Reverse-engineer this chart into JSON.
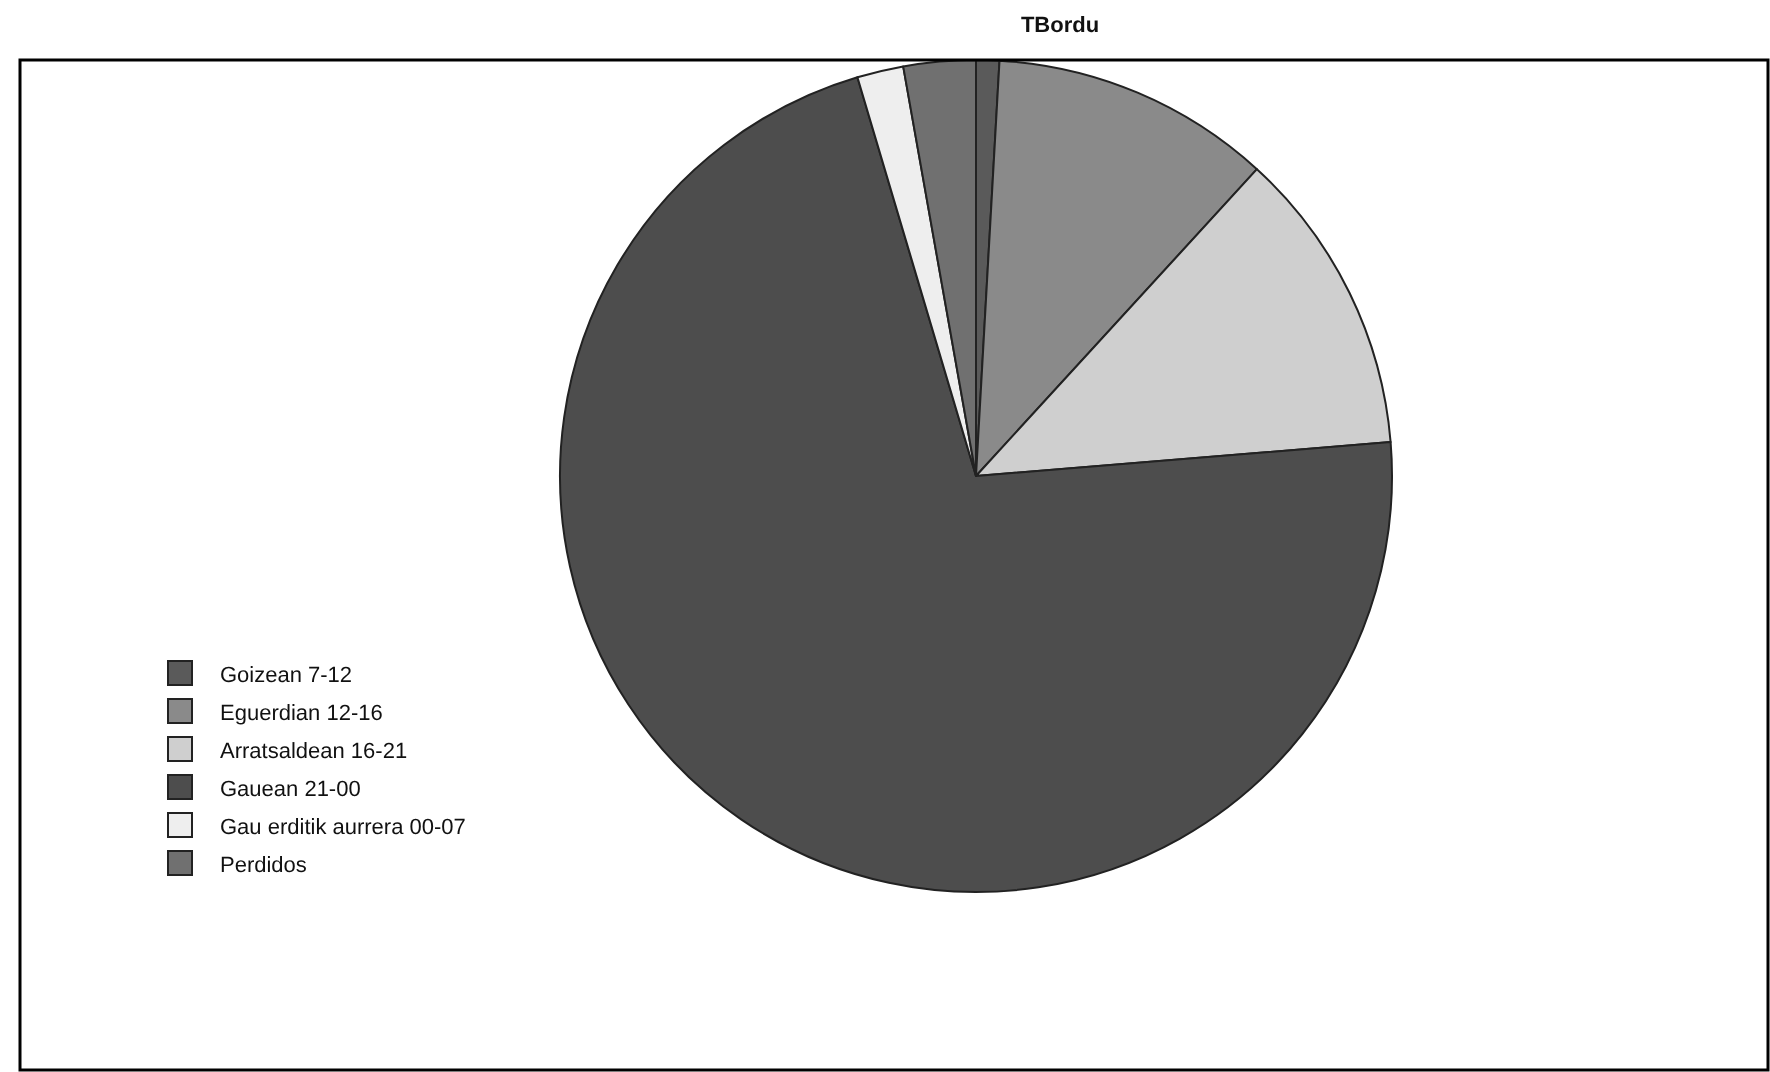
{
  "chart_data": {
    "type": "pie",
    "title": "TBordu",
    "categories": [
      "Goizean 7-12",
      "Eguerdian 12-16",
      "Arratsaldean 16-21",
      "Gauean 21-00",
      "Gau erditik aurrera 00-07",
      "Perdidos"
    ],
    "values": [
      0.9,
      10.9,
      11.9,
      71.7,
      1.8,
      2.8
    ],
    "colors": [
      "#5a5a5a",
      "#8a8a8a",
      "#cfcfcf",
      "#4d4d4d",
      "#eeeeee",
      "#707070"
    ],
    "legend": "left"
  }
}
